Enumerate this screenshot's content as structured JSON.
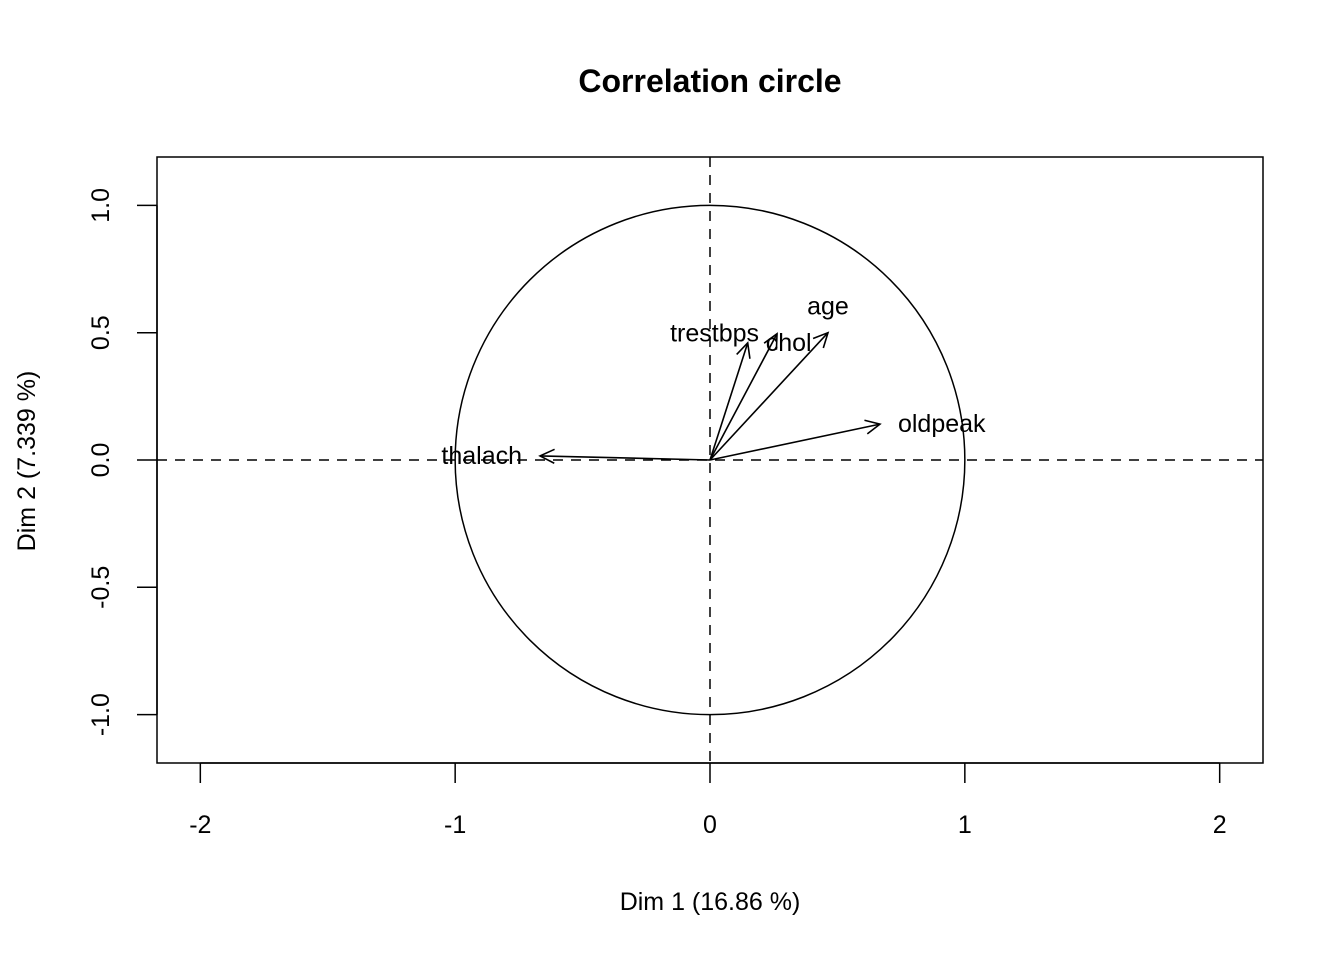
{
  "chart_data": {
    "type": "scatter",
    "subtype": "correlation-circle",
    "title": "Correlation circle",
    "xlabel": "Dim 1 (16.86 %)",
    "ylabel": "Dim 2 (7.339 %)",
    "xlim": [
      -2.17,
      2.17
    ],
    "ylim": [
      -1.19,
      1.19
    ],
    "xticks": [
      "-2",
      "-1",
      "0",
      "1",
      "2"
    ],
    "xtick_values": [
      -2,
      -1,
      0,
      1,
      2
    ],
    "yticks": [
      "-1.0",
      "-0.5",
      "0.0",
      "0.5",
      "1.0"
    ],
    "ytick_values": [
      -1,
      -0.5,
      0,
      0.5,
      1
    ],
    "grid": false,
    "unit_circle": true,
    "variables": [
      {
        "name": "age",
        "x": 0.463,
        "y": 0.5,
        "label_pos": "top"
      },
      {
        "name": "trestbps",
        "x": 0.263,
        "y": 0.496,
        "label_pos": "top"
      },
      {
        "name": "chol",
        "x": 0.148,
        "y": 0.46,
        "label_pos": "top"
      },
      {
        "name": "thalach",
        "x": -0.667,
        "y": 0.016,
        "label_pos": "left"
      },
      {
        "name": "oldpeak",
        "x": 0.667,
        "y": 0.141,
        "label_pos": "right"
      }
    ]
  }
}
